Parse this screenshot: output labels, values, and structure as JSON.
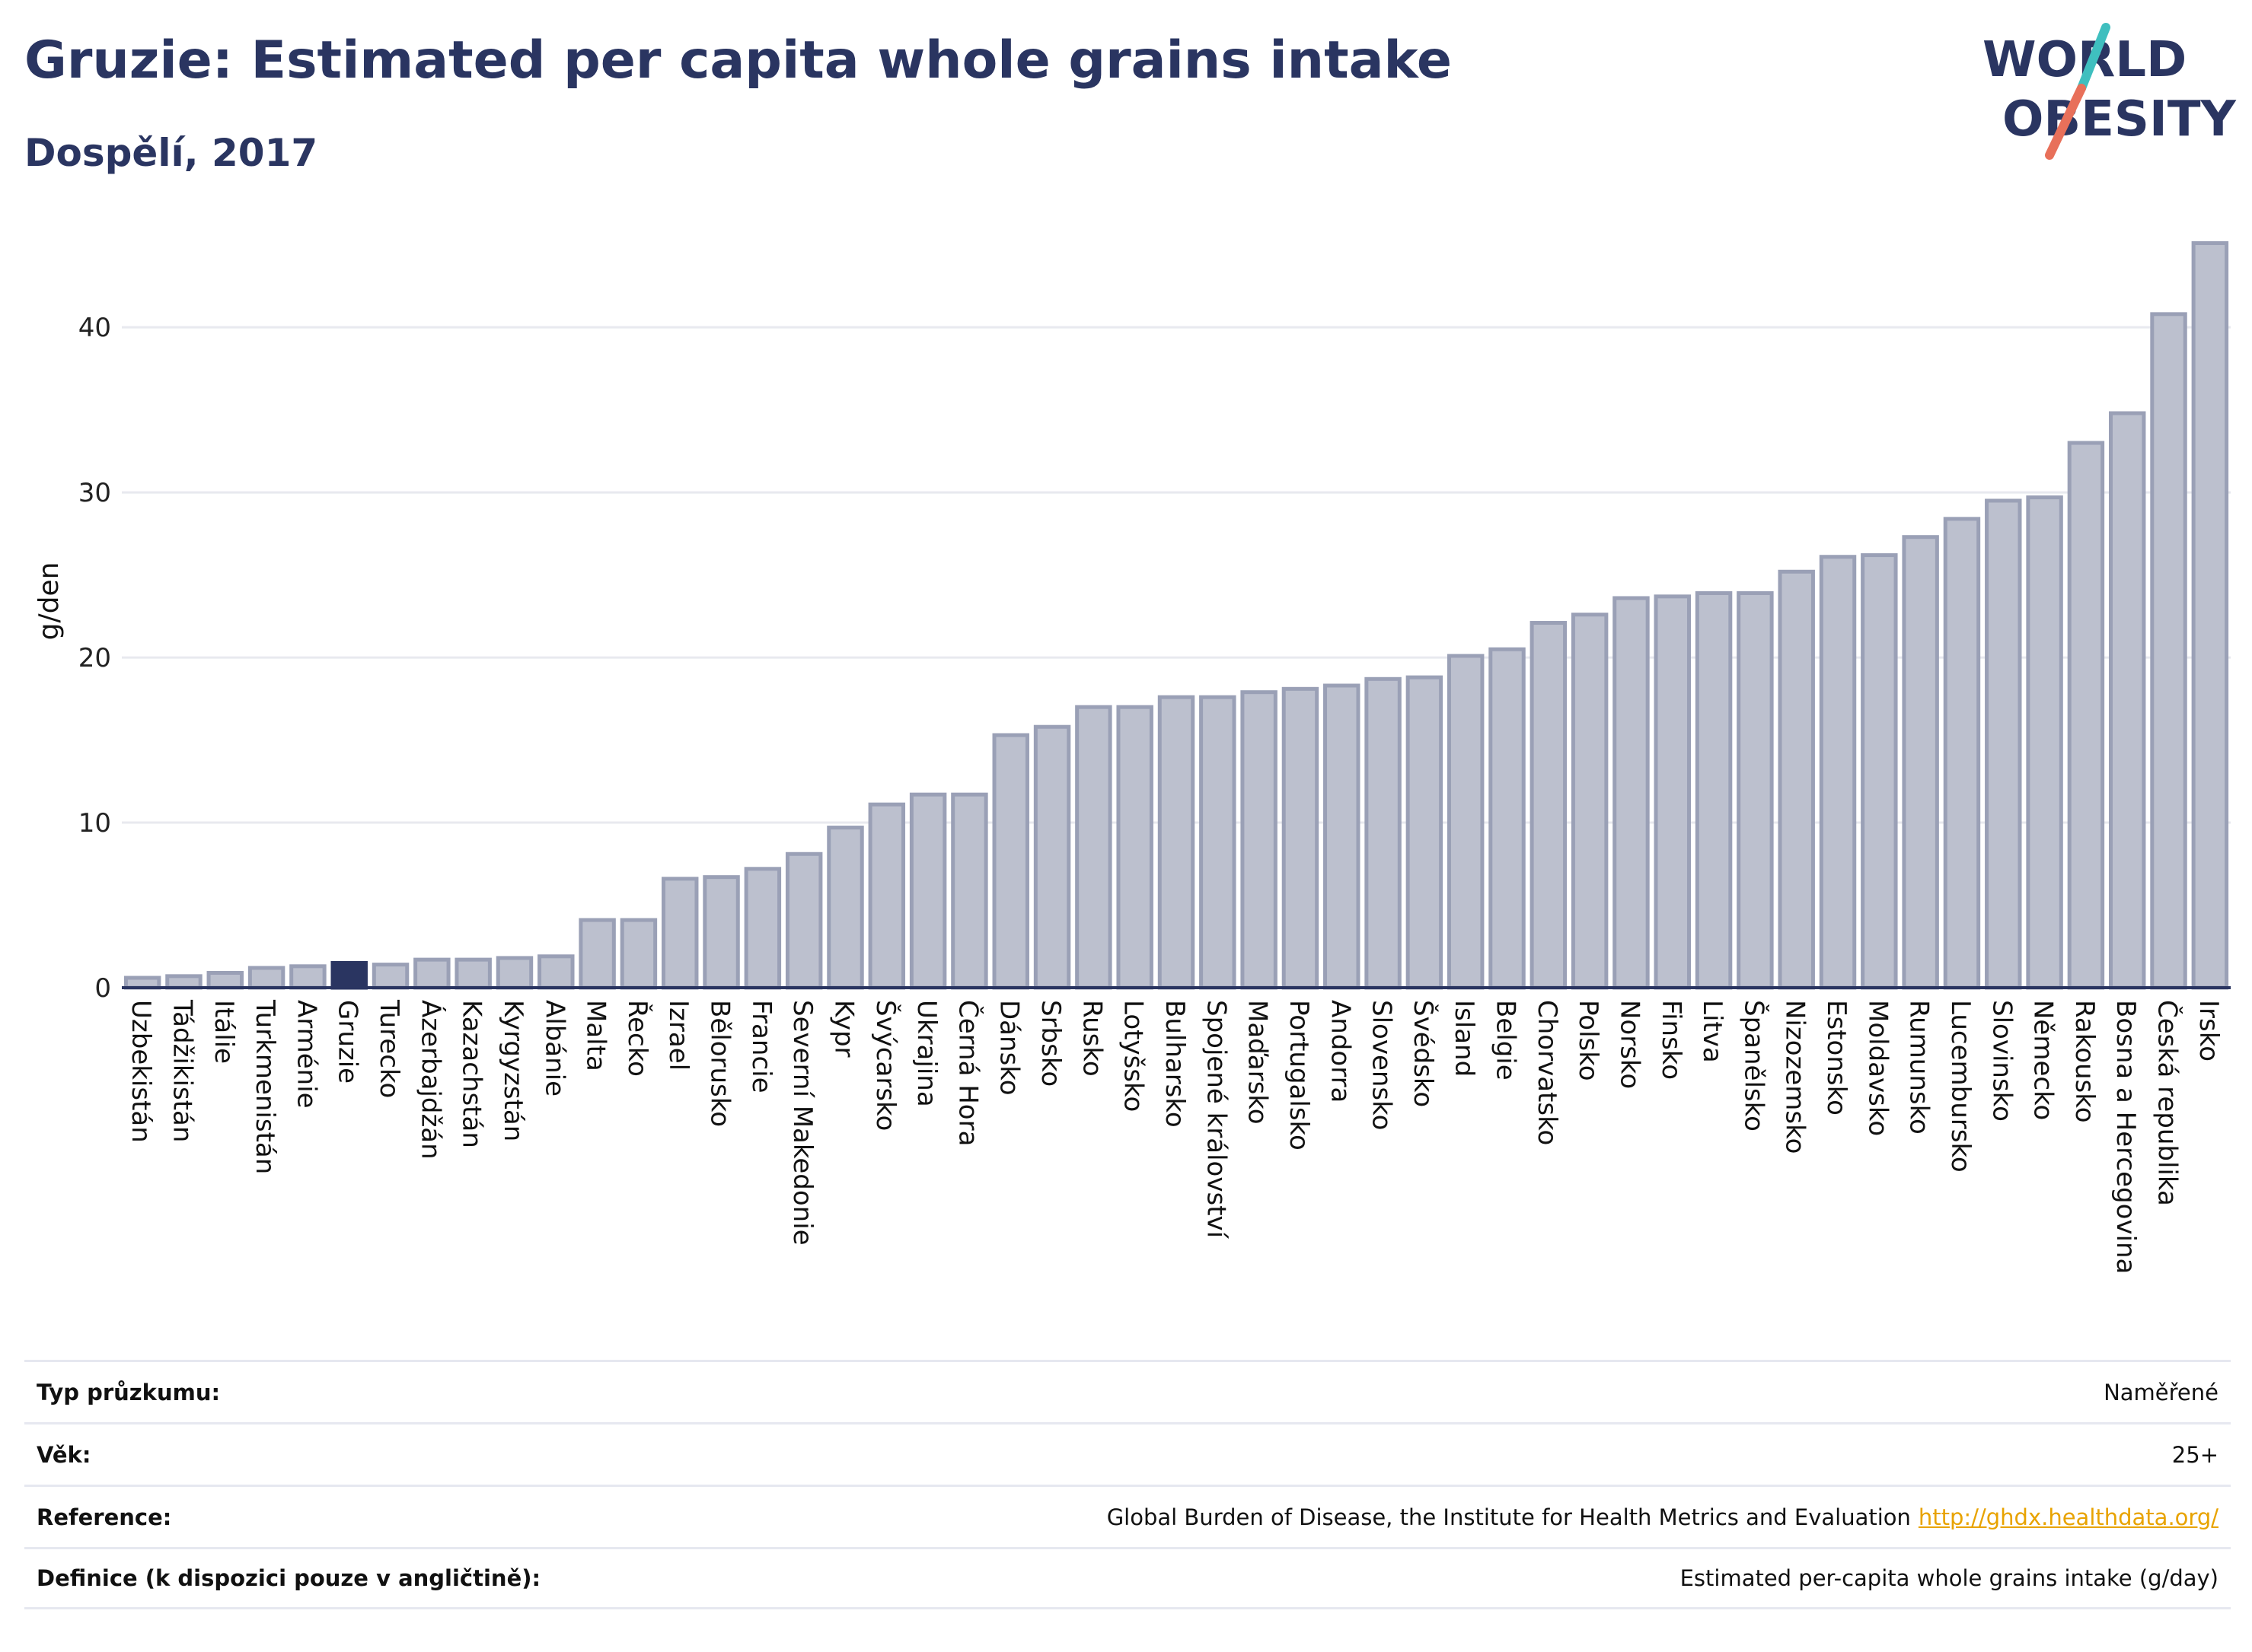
{
  "header": {
    "title": "Gruzie: Estimated per capita whole grains intake",
    "subtitle": "Dospělí, 2017"
  },
  "logo": {
    "line1": "WORLD",
    "line2": "OBESITY",
    "colors": {
      "text": "#2a3561",
      "stroke_top": "#3fbfbf",
      "stroke_bottom": "#e8705a"
    }
  },
  "chart_data": {
    "type": "bar",
    "ylabel": "g/den",
    "ylim": [
      0,
      46
    ],
    "yticks": [
      0,
      10,
      20,
      30,
      40
    ],
    "grid": true,
    "colors": {
      "bar": "#bcc0ce",
      "bar_edge": "#9aa0b6",
      "highlight": "#2a3561",
      "axis": "#2a3561",
      "grid": "#e8e9ef"
    },
    "highlight": "Gruzie",
    "categories": [
      "Uzbekistán",
      "Tádžikistán",
      "Itálie",
      "Turkmenistán",
      "Arménie",
      "Gruzie",
      "Turecko",
      "Ázerbajdžán",
      "Kazachstán",
      "Kyrgyzstán",
      "Albánie",
      "Malta",
      "Řecko",
      "Izrael",
      "Bělorusko",
      "Francie",
      "Severní Makedonie",
      "Kypr",
      "Švýcarsko",
      "Ukrajina",
      "Černá Hora",
      "Dánsko",
      "Srbsko",
      "Rusko",
      "Lotyšsko",
      "Bulharsko",
      "Spojené království",
      "Maďarsko",
      "Portugalsko",
      "Andorra",
      "Slovensko",
      "Švédsko",
      "Island",
      "Belgie",
      "Chorvatsko",
      "Polsko",
      "Norsko",
      "Finsko",
      "Litva",
      "Španělsko",
      "Nizozemsko",
      "Estonsko",
      "Moldavsko",
      "Rumunsko",
      "Lucembursko",
      "Slovinsko",
      "Německo",
      "Rakousko",
      "Bosna a Hercegovina",
      "Česká republika",
      "Irsko"
    ],
    "values": [
      0.6,
      0.7,
      0.9,
      1.2,
      1.3,
      1.5,
      1.4,
      1.7,
      1.7,
      1.8,
      1.9,
      4.1,
      4.1,
      6.6,
      6.7,
      7.2,
      8.1,
      9.7,
      11.1,
      11.7,
      11.7,
      15.3,
      15.8,
      17.0,
      17.0,
      17.6,
      17.6,
      17.9,
      18.1,
      18.3,
      18.7,
      18.8,
      20.1,
      20.5,
      22.1,
      22.6,
      23.6,
      23.7,
      23.9,
      23.9,
      25.2,
      26.1,
      26.2,
      27.3,
      28.4,
      29.5,
      29.7,
      33.0,
      34.8,
      40.8,
      45.1
    ]
  },
  "info": [
    {
      "key": "Typ průzkumu:",
      "value": "Naměřené"
    },
    {
      "key": "Věk:",
      "value": "25+"
    },
    {
      "key": "Reference:",
      "value": "Global Burden of Disease, the Institute for Health Metrics and Evaluation",
      "link": "http://ghdx.healthdata.org/"
    },
    {
      "key": "Definice (k dispozici pouze v angličtině):",
      "value": "Estimated per-capita whole grains intake (g/day)"
    }
  ]
}
